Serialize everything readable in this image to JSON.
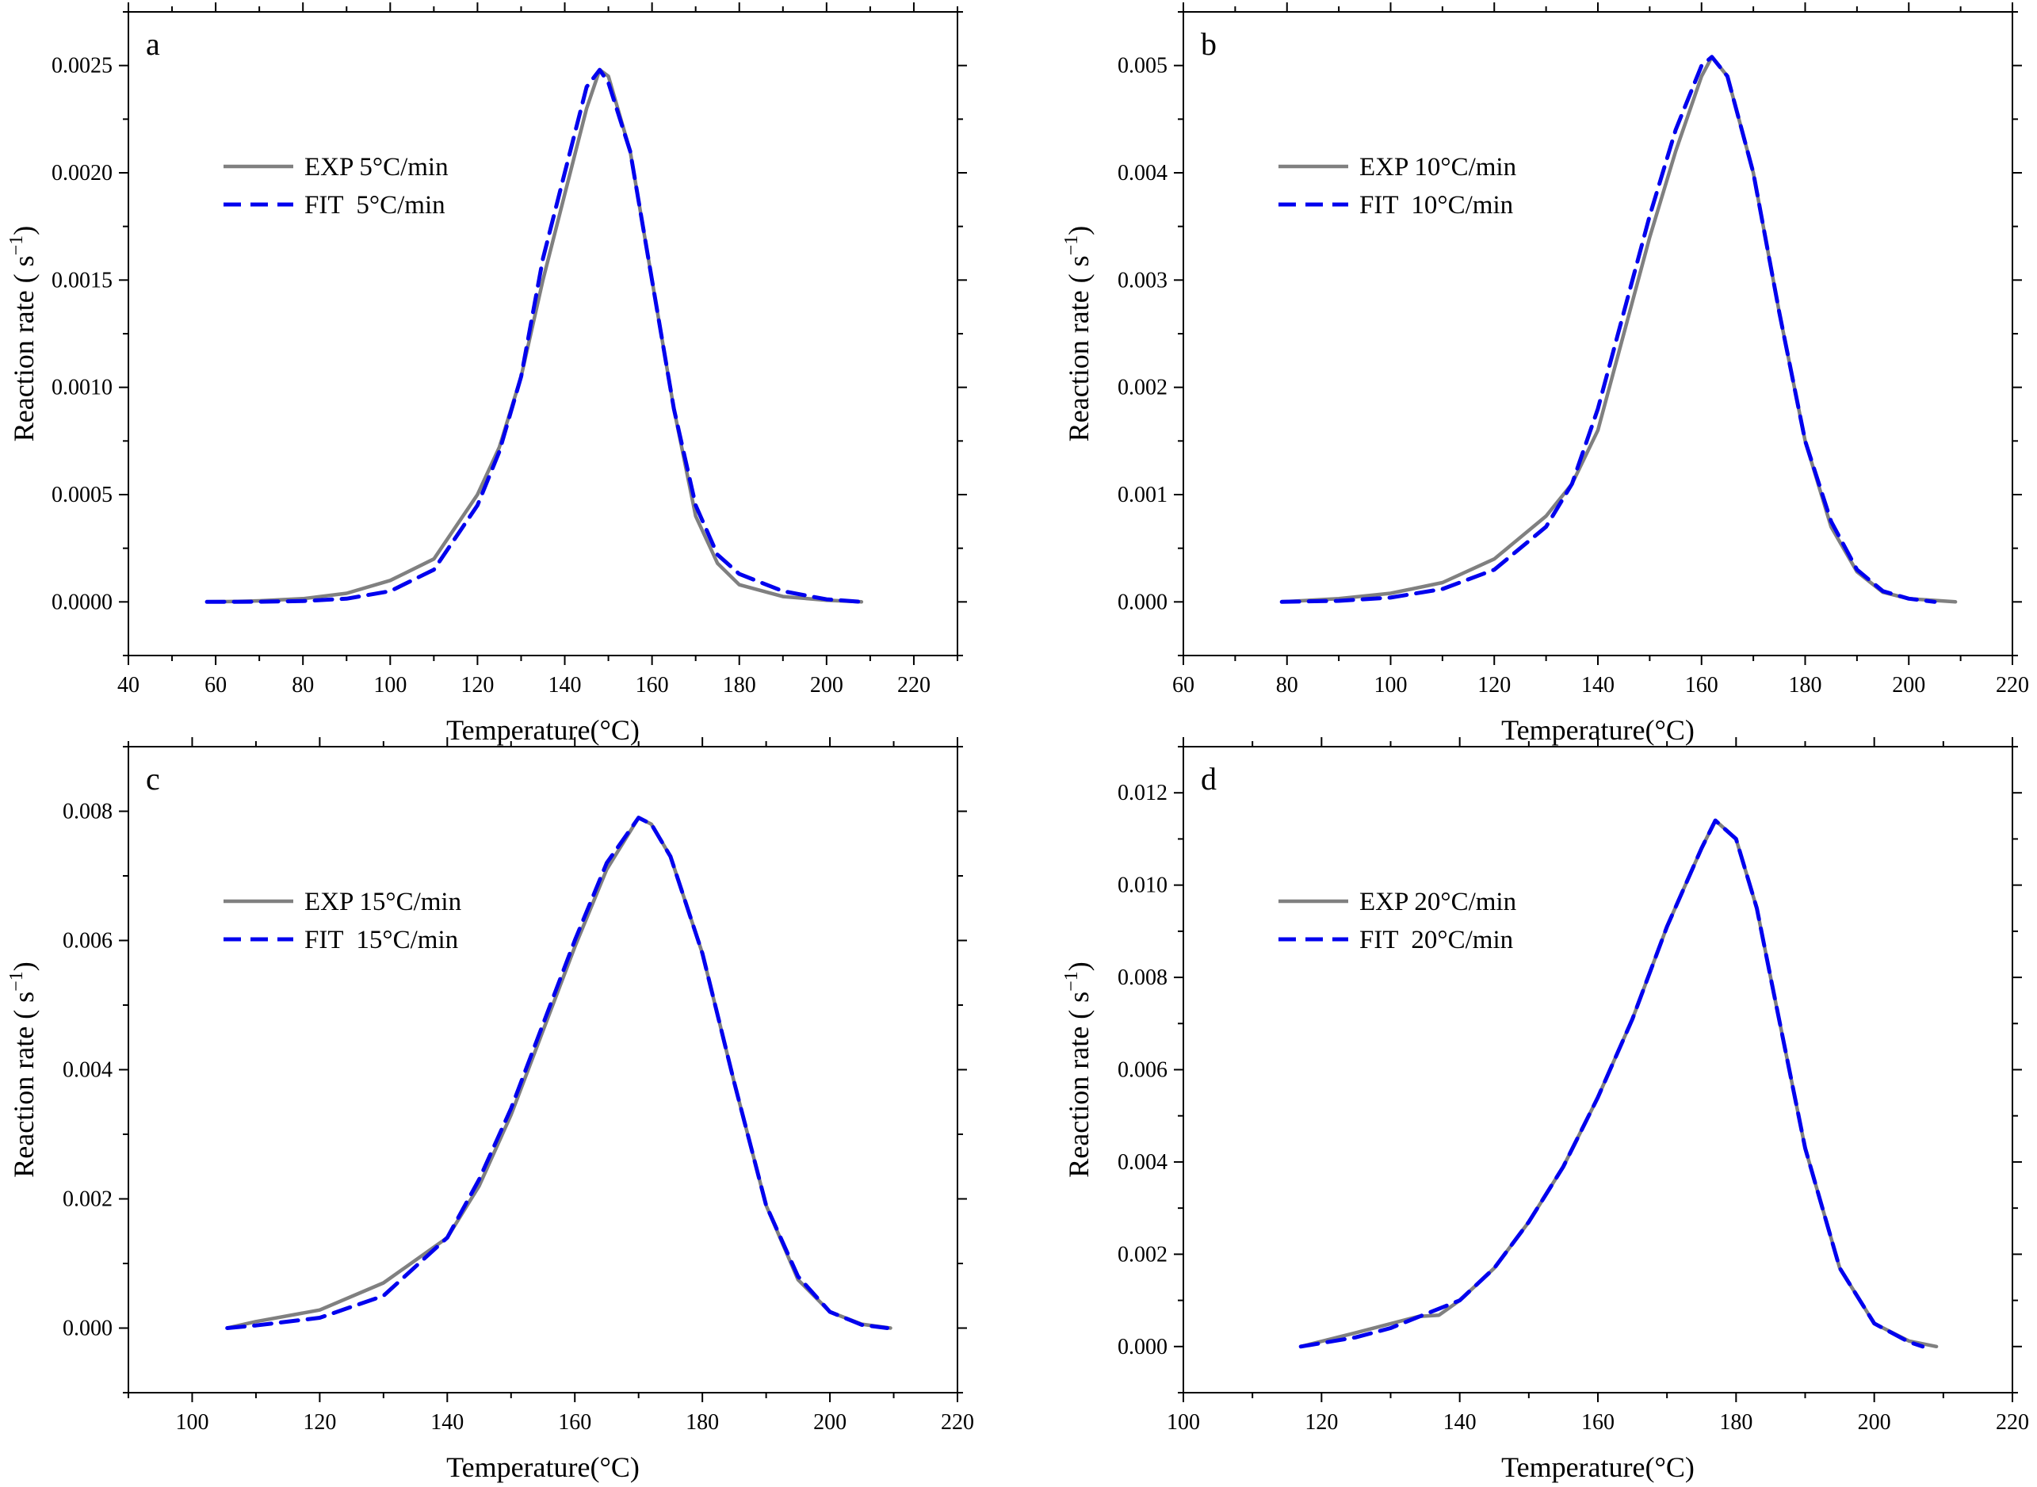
{
  "figure": {
    "x_axis_label": "Temperature(°C)",
    "y_axis_label": "Reaction rate ( s",
    "y_axis_label_sup": "−1",
    "y_axis_label_close": ")"
  },
  "chart_data": [
    {
      "panel": "a",
      "type": "line",
      "xlabel": "Temperature(°C)",
      "ylabel": "Reaction rate ( s−1)",
      "xlim": [
        40,
        230
      ],
      "ylim": [
        -0.00025,
        0.00275
      ],
      "xticks": [
        40,
        60,
        80,
        100,
        120,
        140,
        160,
        180,
        200,
        220
      ],
      "xtick_labels": [
        "40",
        "60",
        "80",
        "100",
        "120",
        "140",
        "160",
        "180",
        "200",
        "220"
      ],
      "yticks": [
        0,
        0.0005,
        0.001,
        0.0015,
        0.002,
        0.0025
      ],
      "ytick_labels": [
        "0.0000",
        "0.0005",
        "0.0010",
        "0.0015",
        "0.0020",
        "0.0025"
      ],
      "legend_position": "upper-left",
      "series": [
        {
          "name": "EXP 5°C/min",
          "color": "#808080",
          "style": "solid",
          "points": [
            [
              58,
              0
            ],
            [
              65,
              2e-06
            ],
            [
              70,
              5e-06
            ],
            [
              80,
              1.5e-05
            ],
            [
              90,
              4e-05
            ],
            [
              100,
              0.0001
            ],
            [
              110,
              0.0002
            ],
            [
              120,
              0.0005
            ],
            [
              125,
              0.00072
            ],
            [
              130,
              0.00105
            ],
            [
              135,
              0.0015
            ],
            [
              140,
              0.0019
            ],
            [
              145,
              0.0023
            ],
            [
              148,
              0.00248
            ],
            [
              150,
              0.00245
            ],
            [
              155,
              0.0021
            ],
            [
              160,
              0.0015
            ],
            [
              165,
              0.0009
            ],
            [
              170,
              0.0004
            ],
            [
              175,
              0.00018
            ],
            [
              180,
              8e-05
            ],
            [
              190,
              2.5e-05
            ],
            [
              200,
              8e-06
            ],
            [
              208,
              0
            ]
          ]
        },
        {
          "name": "FIT  5°C/min",
          "color": "#0000ee",
          "style": "dashed",
          "points": [
            [
              58,
              0
            ],
            [
              70,
              1e-06
            ],
            [
              80,
              4e-06
            ],
            [
              90,
              1.5e-05
            ],
            [
              100,
              5e-05
            ],
            [
              110,
              0.00015
            ],
            [
              120,
              0.00045
            ],
            [
              125,
              0.0007
            ],
            [
              130,
              0.00105
            ],
            [
              135,
              0.0016
            ],
            [
              140,
              0.002
            ],
            [
              145,
              0.0024
            ],
            [
              148,
              0.00248
            ],
            [
              150,
              0.00242
            ],
            [
              155,
              0.0021
            ],
            [
              160,
              0.0015
            ],
            [
              165,
              0.0009
            ],
            [
              170,
              0.00045
            ],
            [
              175,
              0.00022
            ],
            [
              180,
              0.00013
            ],
            [
              190,
              5e-05
            ],
            [
              200,
              1.2e-05
            ],
            [
              208,
              0
            ]
          ]
        }
      ]
    },
    {
      "panel": "b",
      "type": "line",
      "xlabel": "Temperature(°C)",
      "ylabel": "Reaction rate ( s−1)",
      "xlim": [
        60,
        220
      ],
      "ylim": [
        -0.0005,
        0.0055
      ],
      "xticks": [
        60,
        80,
        100,
        120,
        140,
        160,
        180,
        200,
        220
      ],
      "xtick_labels": [
        "60",
        "80",
        "100",
        "120",
        "140",
        "160",
        "180",
        "200",
        "220"
      ],
      "yticks": [
        0,
        0.001,
        0.002,
        0.003,
        0.004,
        0.005
      ],
      "ytick_labels": [
        "0.000",
        "0.001",
        "0.002",
        "0.003",
        "0.004",
        "0.005"
      ],
      "legend_position": "upper-left",
      "series": [
        {
          "name": "EXP 10°C/min",
          "color": "#808080",
          "style": "solid",
          "points": [
            [
              79,
              0
            ],
            [
              90,
              3e-05
            ],
            [
              100,
              8e-05
            ],
            [
              110,
              0.00018
            ],
            [
              120,
              0.0004
            ],
            [
              130,
              0.0008
            ],
            [
              135,
              0.0011
            ],
            [
              140,
              0.0016
            ],
            [
              145,
              0.0025
            ],
            [
              150,
              0.0034
            ],
            [
              155,
              0.0042
            ],
            [
              160,
              0.0049
            ],
            [
              162,
              0.00508
            ],
            [
              165,
              0.0049
            ],
            [
              170,
              0.004
            ],
            [
              175,
              0.0027
            ],
            [
              180,
              0.0015
            ],
            [
              185,
              0.0007
            ],
            [
              190,
              0.00028
            ],
            [
              195,
              9e-05
            ],
            [
              200,
              3e-05
            ],
            [
              209,
              0
            ]
          ]
        },
        {
          "name": "FIT  10°C/min",
          "color": "#0000ee",
          "style": "dashed",
          "points": [
            [
              79,
              0
            ],
            [
              90,
              1e-05
            ],
            [
              100,
              4e-05
            ],
            [
              110,
              0.00012
            ],
            [
              120,
              0.0003
            ],
            [
              130,
              0.0007
            ],
            [
              135,
              0.0011
            ],
            [
              140,
              0.0018
            ],
            [
              145,
              0.0027
            ],
            [
              150,
              0.0036
            ],
            [
              155,
              0.0044
            ],
            [
              160,
              0.005
            ],
            [
              162,
              0.00508
            ],
            [
              165,
              0.0049
            ],
            [
              170,
              0.004
            ],
            [
              175,
              0.0027
            ],
            [
              180,
              0.0015
            ],
            [
              185,
              0.00075
            ],
            [
              190,
              0.0003
            ],
            [
              195,
              0.0001
            ],
            [
              200,
              3e-05
            ],
            [
              205,
              0
            ]
          ]
        }
      ]
    },
    {
      "panel": "c",
      "type": "line",
      "xlabel": "Temperature(°C)",
      "ylabel": "Reaction rate ( s−1)",
      "xlim": [
        90,
        220
      ],
      "ylim": [
        -0.001,
        0.009
      ],
      "xticks": [
        100,
        120,
        140,
        160,
        180,
        200,
        220
      ],
      "xtick_labels": [
        "100",
        "120",
        "140",
        "160",
        "180",
        "200",
        "220"
      ],
      "yticks": [
        0,
        0.002,
        0.004,
        0.006,
        0.008
      ],
      "ytick_labels": [
        "0.000",
        "0.002",
        "0.004",
        "0.006",
        "0.008"
      ],
      "legend_position": "upper-left",
      "series": [
        {
          "name": "EXP 15°C/min",
          "color": "#808080",
          "style": "solid",
          "points": [
            [
              105.5,
              0
            ],
            [
              110,
              0.0001
            ],
            [
              120,
              0.00028
            ],
            [
              130,
              0.0007
            ],
            [
              140,
              0.0014
            ],
            [
              145,
              0.0022
            ],
            [
              150,
              0.0033
            ],
            [
              155,
              0.0046
            ],
            [
              160,
              0.0059
            ],
            [
              165,
              0.0071
            ],
            [
              170,
              0.0079
            ],
            [
              172,
              0.0078
            ],
            [
              175,
              0.0073
            ],
            [
              180,
              0.0058
            ],
            [
              185,
              0.0038
            ],
            [
              190,
              0.0019
            ],
            [
              195,
              0.00075
            ],
            [
              200,
              0.00025
            ],
            [
              205,
              6e-05
            ],
            [
              209.5,
              0
            ]
          ]
        },
        {
          "name": "FIT  15°C/min",
          "color": "#0000ee",
          "style": "dashed",
          "points": [
            [
              105.5,
              0
            ],
            [
              110,
              4e-05
            ],
            [
              120,
              0.00016
            ],
            [
              130,
              0.0005
            ],
            [
              140,
              0.0014
            ],
            [
              145,
              0.0023
            ],
            [
              150,
              0.0034
            ],
            [
              155,
              0.0047
            ],
            [
              160,
              0.006
            ],
            [
              165,
              0.0072
            ],
            [
              170,
              0.0079
            ],
            [
              172,
              0.0078
            ],
            [
              175,
              0.0073
            ],
            [
              180,
              0.0058
            ],
            [
              185,
              0.0038
            ],
            [
              190,
              0.0019
            ],
            [
              195,
              0.0008
            ],
            [
              200,
              0.00025
            ],
            [
              205,
              5e-05
            ],
            [
              209,
              0
            ]
          ]
        }
      ]
    },
    {
      "panel": "d",
      "type": "line",
      "xlabel": "Temperature(°C)",
      "ylabel": "Reaction rate ( s−1)",
      "xlim": [
        100,
        220
      ],
      "ylim": [
        -0.001,
        0.013
      ],
      "xticks": [
        100,
        120,
        140,
        160,
        180,
        200,
        220
      ],
      "xtick_labels": [
        "100",
        "120",
        "140",
        "160",
        "180",
        "200",
        "220"
      ],
      "yticks": [
        0,
        0.002,
        0.004,
        0.006,
        0.008,
        0.01,
        0.012
      ],
      "ytick_labels": [
        "0.000",
        "0.002",
        "0.004",
        "0.006",
        "0.008",
        "0.010",
        "0.012"
      ],
      "legend_position": "upper-left",
      "series": [
        {
          "name": "EXP 20°C/min",
          "color": "#808080",
          "style": "solid",
          "points": [
            [
              117,
              0
            ],
            [
              125,
              0.0003
            ],
            [
              134,
              0.00065
            ],
            [
              137,
              0.00068
            ],
            [
              140,
              0.001
            ],
            [
              145,
              0.0017
            ],
            [
              150,
              0.0027
            ],
            [
              155,
              0.0039
            ],
            [
              160,
              0.0054
            ],
            [
              165,
              0.0071
            ],
            [
              170,
              0.0091
            ],
            [
              175,
              0.0108
            ],
            [
              177,
              0.0114
            ],
            [
              180,
              0.011
            ],
            [
              183,
              0.0095
            ],
            [
              185,
              0.008
            ],
            [
              190,
              0.0043
            ],
            [
              195,
              0.0017
            ],
            [
              200,
              0.0005
            ],
            [
              205,
              0.00012
            ],
            [
              209,
              0
            ]
          ]
        },
        {
          "name": "FIT  20°C/min",
          "color": "#0000ee",
          "style": "dashed",
          "points": [
            [
              117,
              0
            ],
            [
              125,
              0.0002
            ],
            [
              130,
              0.0004
            ],
            [
              135,
              0.0007
            ],
            [
              140,
              0.001
            ],
            [
              145,
              0.0017
            ],
            [
              150,
              0.0027
            ],
            [
              155,
              0.0039
            ],
            [
              160,
              0.0054
            ],
            [
              165,
              0.0071
            ],
            [
              170,
              0.0091
            ],
            [
              175,
              0.0108
            ],
            [
              177,
              0.0114
            ],
            [
              180,
              0.011
            ],
            [
              183,
              0.0095
            ],
            [
              185,
              0.008
            ],
            [
              190,
              0.0043
            ],
            [
              195,
              0.0017
            ],
            [
              200,
              0.0005
            ],
            [
              205,
              0.0001
            ],
            [
              207,
              0
            ]
          ]
        }
      ]
    }
  ]
}
